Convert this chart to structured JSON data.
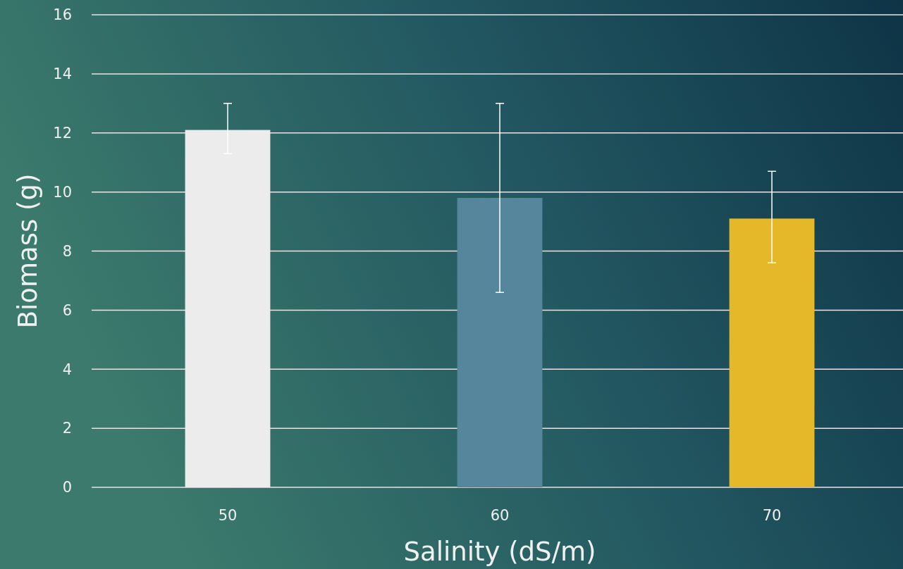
{
  "chart_data": {
    "type": "bar",
    "xlabel": "Salinity (dS/m)",
    "ylabel": "Biomass (g)",
    "categories": [
      "50",
      "60",
      "70"
    ],
    "values": [
      12.1,
      9.8,
      9.1
    ],
    "colors": [
      "#ececec",
      "#55869c",
      "#e5b82a"
    ],
    "errors": [
      [
        11.3,
        13.0
      ],
      [
        6.6,
        13.0
      ],
      [
        7.6,
        10.7
      ]
    ],
    "ylim": [
      0,
      16
    ],
    "yticks": [
      0,
      2,
      4,
      6,
      8,
      10,
      12,
      14,
      16
    ],
    "grid": "y"
  }
}
